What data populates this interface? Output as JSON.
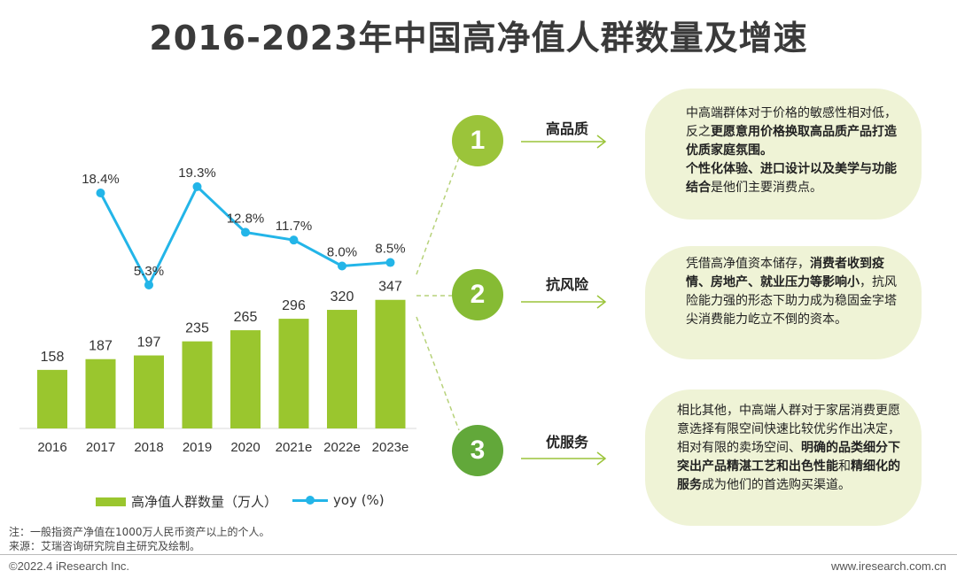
{
  "title": "2016-2023年中国高净值人群数量及增速",
  "chart_data": {
    "type": "bar",
    "categories": [
      "2016",
      "2017",
      "2018",
      "2019",
      "2020",
      "2021e",
      "2022e",
      "2023e"
    ],
    "series": [
      {
        "name": "高净值人群数量（万人）",
        "type": "bar",
        "values": [
          158,
          187,
          197,
          235,
          265,
          296,
          320,
          347
        ],
        "labels": [
          "158",
          "187",
          "197",
          "235",
          "265",
          "296",
          "320",
          "347"
        ]
      },
      {
        "name": "yoy (%)",
        "type": "line",
        "values": [
          null,
          18.4,
          5.3,
          19.3,
          12.8,
          11.7,
          8.0,
          8.5
        ],
        "labels": [
          "",
          "18.4%",
          "5.3%",
          "19.3%",
          "12.8%",
          "11.7%",
          "8.0%",
          "8.5%"
        ]
      }
    ],
    "legend": [
      "高净值人群数量（万人）",
      "yoy (%)"
    ],
    "colors": {
      "bar": "#9ac62e",
      "line": "#23b5e8"
    }
  },
  "points": [
    {
      "number": "1",
      "label": "高品质",
      "color": "#9bc43a",
      "text": [
        {
          "t": "中高端群体对于价格的敏感性相对低，反之",
          "b": false
        },
        {
          "t": "更愿意用价格换取高品质产品打造优质家庭氛围。",
          "b": true
        },
        {
          "t": "个性化体验、进口设计以及美学与功能结合",
          "b": true
        },
        {
          "t": "是他们主要消费点。",
          "b": false
        }
      ]
    },
    {
      "number": "2",
      "label": "抗风险",
      "color": "#86bb34",
      "text": [
        {
          "t": "凭借高净值资本储存，",
          "b": false
        },
        {
          "t": "消费者收到疫情、房地产、就业压力等影响小",
          "b": true
        },
        {
          "t": "，抗风险能力强的形态下助力成为稳固金字塔尖消费能力屹立不倒的资本。",
          "b": false
        }
      ]
    },
    {
      "number": "3",
      "label": "优服务",
      "color": "#62a83a",
      "text": [
        {
          "t": "相比其他，中高端人群对于家居消费更愿意选择有限空间快速比较优劣作出决定，相对有限的卖场空间、",
          "b": false
        },
        {
          "t": "明确的品类细分下突出产品精湛工艺和出色性能",
          "b": true
        },
        {
          "t": "和",
          "b": false
        },
        {
          "t": "精细化的服务",
          "b": true
        },
        {
          "t": "成为他们的首选购买渠道。",
          "b": false
        }
      ]
    }
  ],
  "notes": {
    "note": "注：一般指资产净值在1000万人民币资产以上的个人。",
    "source": "来源：艾瑞咨询研究院自主研究及绘制。"
  },
  "footer": {
    "left": "©2022.4 iResearch Inc.",
    "right": "www.iresearch.com.cn"
  }
}
